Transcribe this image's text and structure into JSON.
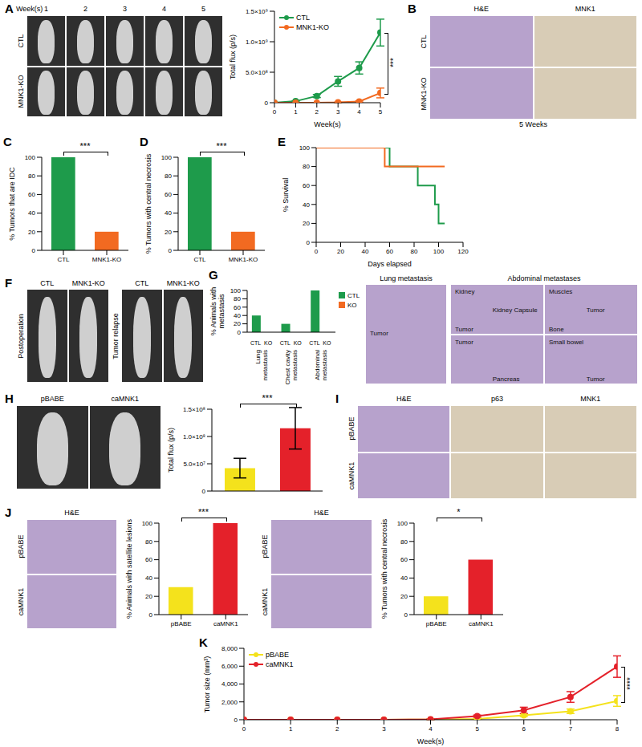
{
  "chart_data": [
    {
      "type": "line",
      "x_label": "Week(s)",
      "y_label": "Total flux (p/s)",
      "x": [
        0,
        1,
        2,
        3,
        4,
        5
      ],
      "xlim": [
        0,
        5
      ],
      "xticks": [
        0,
        1,
        2,
        3,
        4,
        5
      ],
      "ylim": [
        0,
        1500000000
      ],
      "yticks": [
        0,
        {
          "value": 500000000,
          "label": "5.0×10⁸"
        },
        {
          "value": 1000000000,
          "label": "1.0×10⁹"
        },
        {
          "value": 1500000000,
          "label": "1.5×10⁹"
        }
      ],
      "series": [
        {
          "name": "CTL",
          "color": "#1e9b4b",
          "marker": "circle",
          "values": [
            0,
            25000000,
            110000000,
            350000000,
            570000000,
            1150000000
          ],
          "errors": [
            0,
            8000000,
            25000000,
            80000000,
            100000000,
            220000000
          ]
        },
        {
          "name": "MNK1-KO",
          "color": "#f26a21",
          "marker": "circle",
          "values": [
            0,
            0,
            0,
            5000000,
            20000000,
            160000000
          ],
          "errors": [
            0,
            0,
            0,
            3000000,
            10000000,
            80000000
          ]
        }
      ],
      "legend": "upper left",
      "annotations": [
        "***"
      ]
    },
    {
      "panel": "C",
      "type": "bar",
      "y_label": "% Tumors that are IDC",
      "categories": [
        "CTL",
        "MNK1-KO"
      ],
      "values": [
        100,
        20
      ],
      "colors": [
        "#1e9b4b",
        "#f26a21"
      ],
      "ylim": [
        0,
        100
      ],
      "yticks": [
        0,
        20,
        40,
        60,
        80,
        100
      ],
      "annotations": [
        "***"
      ]
    },
    {
      "panel": "D",
      "type": "bar",
      "y_label": "% Tumors with central necrosis",
      "categories": [
        "CTL",
        "MNK1-KO"
      ],
      "values": [
        100,
        20
      ],
      "colors": [
        "#1e9b4b",
        "#f26a21"
      ],
      "ylim": [
        0,
        100
      ],
      "yticks": [
        0,
        20,
        40,
        60,
        80,
        100
      ],
      "annotations": [
        "***"
      ]
    },
    {
      "panel": "E",
      "type": "line",
      "line_style": "step",
      "x_label": "Days elapsed",
      "y_label": "% Survival",
      "xlim": [
        0,
        120
      ],
      "xticks": [
        0,
        20,
        40,
        60,
        80,
        100,
        120
      ],
      "ylim": [
        0,
        100
      ],
      "yticks": [
        0,
        20,
        40,
        60,
        80,
        100
      ],
      "series": [
        {
          "color": "#1e9b4b",
          "x": [
            0,
            60,
            83,
            97,
            100,
            105
          ],
          "values": [
            100,
            80,
            60,
            40,
            20,
            20
          ]
        },
        {
          "color": "#f26a21",
          "x": [
            0,
            56,
            105
          ],
          "values": [
            100,
            80,
            80
          ]
        }
      ]
    },
    {
      "panel": "G",
      "type": "bar",
      "y_label": "% Animals with metastasis",
      "categories": [
        "Lung metastasis",
        "Chest cavity metastasis",
        "Abdominal metastasis"
      ],
      "series": [
        {
          "name": "CTL",
          "color": "#1e9b4b",
          "values": [
            40,
            20,
            100
          ]
        },
        {
          "name": "KO",
          "color": "#f26a21",
          "values": [
            0,
            0,
            0
          ]
        }
      ],
      "ylim": [
        0,
        100
      ],
      "yticks": [
        0,
        20,
        40,
        60,
        80,
        100
      ],
      "legend": "right"
    },
    {
      "type": "bar",
      "y_label": "Total flux (p/s)",
      "categories": [
        null,
        null
      ],
      "values": [
        42000000,
        115000000
      ],
      "errors": [
        18000000,
        38000000
      ],
      "colors": [
        "#f4e21c",
        "#e4212a"
      ],
      "ylim": [
        0,
        150000000
      ],
      "yticks": [
        0,
        {
          "value": 50000000,
          "label": "5.0×10⁷"
        },
        {
          "value": 100000000,
          "label": "1.0×10⁸"
        },
        {
          "value": 150000000,
          "label": "1.5×10⁸"
        }
      ],
      "tick_labels": "y",
      "annotations": [
        "***"
      ]
    },
    {
      "type": "bar",
      "y_label": "% Animals with satellite lesions",
      "categories": [
        "pBABE",
        "caMNK1"
      ],
      "values": [
        30,
        100
      ],
      "colors": [
        "#f4e21c",
        "#e4212a"
      ],
      "ylim": [
        0,
        100
      ],
      "yticks": [
        0,
        20,
        40,
        60,
        80,
        100
      ],
      "annotations": [
        "***"
      ]
    },
    {
      "type": "bar",
      "y_label": "% Tumors with central necrosis",
      "categories": [
        "pBABE",
        "caMNK1"
      ],
      "values": [
        20,
        60
      ],
      "colors": [
        "#f4e21c",
        "#e4212a"
      ],
      "ylim": [
        0,
        100
      ],
      "yticks": [
        0,
        20,
        40,
        60,
        80,
        100
      ],
      "annotations": [
        "*"
      ]
    },
    {
      "panel": "K",
      "type": "line",
      "x_label": "Week(s)",
      "y_label": "Tumor size (mm³)",
      "x": [
        0,
        1,
        2,
        3,
        4,
        5,
        6,
        7,
        8
      ],
      "xlim": [
        0,
        8
      ],
      "xticks": [
        0,
        1,
        2,
        3,
        4,
        5,
        6,
        7,
        8
      ],
      "ylim": [
        0,
        8000
      ],
      "yticks": [
        0,
        {
          "value": 2000,
          "label": "2,000"
        },
        {
          "value": 4000,
          "label": "4,000"
        },
        {
          "value": 6000,
          "label": "6,000"
        },
        {
          "value": 8000,
          "label": "8,000"
        }
      ],
      "series": [
        {
          "name": "pBABE",
          "color": "#f4e21c",
          "marker": "circle",
          "values": [
            0,
            0,
            0,
            0,
            30,
            100,
            500,
            950,
            2100
          ],
          "errors": [
            0,
            0,
            0,
            0,
            20,
            50,
            150,
            250,
            600
          ]
        },
        {
          "name": "caMNK1",
          "color": "#e4212a",
          "marker": "circle",
          "values": [
            0,
            0,
            0,
            0,
            50,
            400,
            1050,
            2550,
            5950
          ],
          "errors": [
            0,
            0,
            0,
            0,
            40,
            120,
            350,
            600,
            1200
          ]
        }
      ],
      "legend": "upper left",
      "annotations": [
        "****"
      ]
    }
  ],
  "image_panels": [
    {
      "panel": "A",
      "title": "Week(s)",
      "column_labels": [
        "1",
        "2",
        "3",
        "4",
        "5"
      ],
      "row_labels": [
        "CTL",
        "MNK1-KO"
      ]
    },
    {
      "panel": "B",
      "column_labels": [
        "H&E",
        "MNK1"
      ],
      "row_labels": [
        "CTL",
        "MNK1-KO"
      ],
      "caption": "5 Weeks"
    },
    {
      "panel": "F",
      "groups": [
        {
          "title": "Postoperation",
          "column_labels": [
            "CTL",
            "MNK1-KO"
          ]
        },
        {
          "title": "Tumor relapse",
          "column_labels": [
            "CTL",
            "MNK1-KO"
          ]
        }
      ]
    },
    {
      "tiles": [
        {
          "title": "Lung metastasis",
          "labels": [
            "Tumor"
          ]
        },
        {
          "title": "Abdominal metastases",
          "labels": [
            "Kidney",
            "Kidney Capsule",
            "Tumor"
          ]
        },
        {
          "labels": [
            "Muscles",
            "Tumor",
            "Bone"
          ]
        },
        {
          "labels": [
            "Tumor",
            "Pancreas"
          ]
        },
        {
          "labels": [
            "Small bowel",
            "Tumor"
          ]
        }
      ]
    },
    {
      "panel": "H",
      "column_labels": [
        "pBABE",
        "caMNK1"
      ]
    },
    {
      "panel": "I",
      "column_labels": [
        "H&E",
        "p63",
        "MNK1"
      ],
      "row_labels": [
        "pBABE",
        "caMNK1"
      ]
    },
    {
      "panel": "J",
      "column_labels": [
        "H&E"
      ],
      "row_labels": [
        "pBABE",
        "caMNK1"
      ]
    },
    {
      "column_labels": [
        "H&E"
      ],
      "row_labels": [
        "pBABE",
        "caMNK1"
      ]
    }
  ]
}
